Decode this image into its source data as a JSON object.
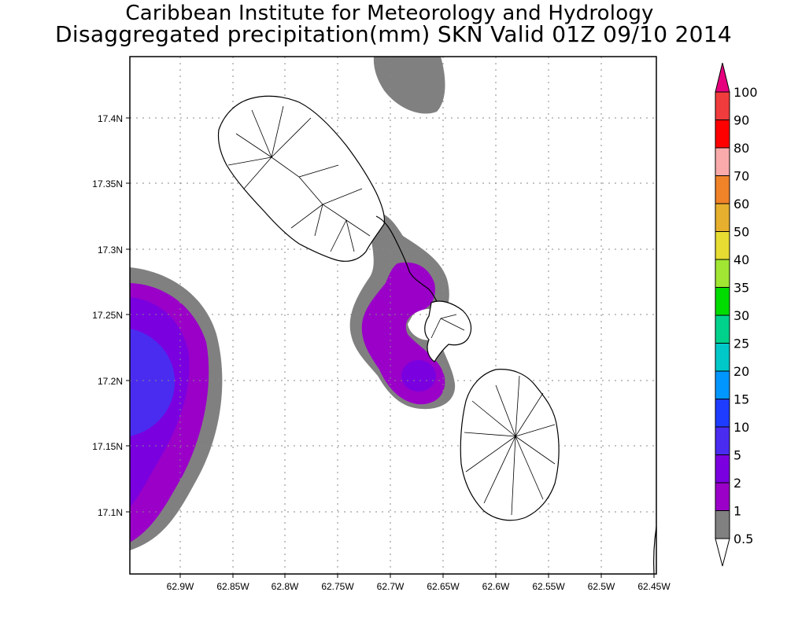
{
  "title": {
    "line1": "Caribbean Institute for Meteorology and Hydrology",
    "line2": "Disaggregated precipitation(mm) SKN Valid 01Z 09/10 2014"
  },
  "axes": {
    "x_ticks": [
      "62.9W",
      "62.85W",
      "62.8W",
      "62.75W",
      "62.7W",
      "62.65W",
      "62.6W",
      "62.55W",
      "62.5W",
      "62.45W"
    ],
    "y_ticks": [
      "17.4N",
      "17.35N",
      "17.3N",
      "17.25N",
      "17.2N",
      "17.15N",
      "17.1N"
    ],
    "x_range": [
      -62.938,
      -62.44
    ],
    "y_range": [
      17.05,
      17.44
    ],
    "grid": true
  },
  "legend": {
    "levels": [
      {
        "label": "0.5",
        "color": "#808080"
      },
      {
        "label": "1",
        "color": "#9a00c8"
      },
      {
        "label": "2",
        "color": "#7a00e0"
      },
      {
        "label": "5",
        "color": "#4a2cf0"
      },
      {
        "label": "10",
        "color": "#1e3cff"
      },
      {
        "label": "15",
        "color": "#0096ff"
      },
      {
        "label": "20",
        "color": "#00c8c8"
      },
      {
        "label": "25",
        "color": "#00d28c"
      },
      {
        "label": "30",
        "color": "#00dc00"
      },
      {
        "label": "35",
        "color": "#a0e632"
      },
      {
        "label": "40",
        "color": "#e6dc32"
      },
      {
        "label": "50",
        "color": "#e6af2d"
      },
      {
        "label": "60",
        "color": "#f08228"
      },
      {
        "label": "70",
        "color": "#faaaaa"
      },
      {
        "label": "80",
        "color": "#ff0000"
      },
      {
        "label": "90",
        "color": "#f03c3c"
      },
      {
        "label": "100",
        "color": "#ff3232"
      }
    ],
    "top_arrow_color": "#e6007e",
    "bottom_arrow_color": "#ffffff"
  },
  "precip_colors": {
    "gray": "#808080",
    "purple": "#9a00c8",
    "violet": "#7a00e0",
    "blue": "#4a2cf0"
  }
}
